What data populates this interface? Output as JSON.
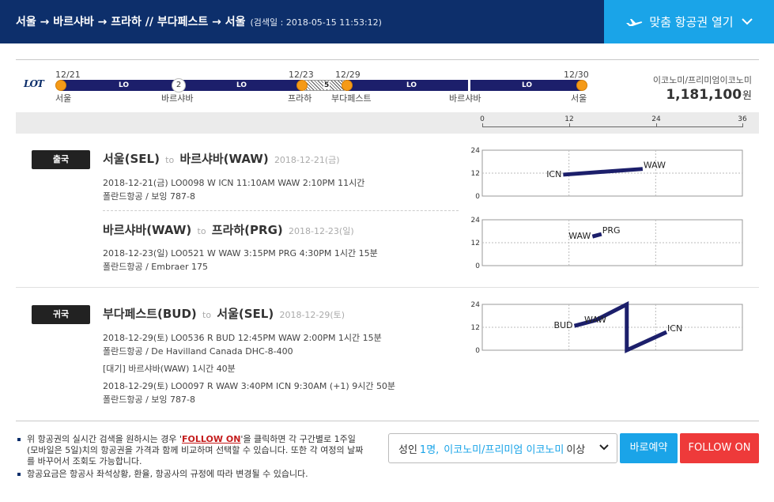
{
  "header": {
    "route": "서울 → 바르샤바 → 프라하 // 부다페스트 → 서울",
    "search_date": "(검색일 : 2018-05-15 11:53:12)",
    "custom_ticket_label": "맞춤 항공권 열기"
  },
  "timeline": {
    "airline_logo": "LOT",
    "segments": [
      "LO",
      "LO",
      "LO",
      "LO"
    ],
    "stop_count": "2",
    "hatch_count": "5",
    "dates": [
      "12/21",
      "12/23",
      "12/29",
      "12/30"
    ],
    "cities": [
      "서울",
      "바르샤바",
      "프라하",
      "부다페스트",
      "바르샤바",
      "서울"
    ],
    "fare_class": "이코노미/프리미엄이코노미",
    "price": "1,181,100",
    "currency": "원",
    "hour_scale": [
      "0",
      "12",
      "24",
      "36"
    ]
  },
  "legs": {
    "outbound": {
      "badge": "출국",
      "flights": [
        {
          "from": "서울(SEL)",
          "to_word": "to",
          "to": "바르샤바(WAW)",
          "date": "2018-12-21(금)",
          "detail": "2018-12-21(금)   LO0098   W   ICN 11:10AM WAW 2:10PM   11시간",
          "aircraft": "폴란드항공 / 보잉 787-8"
        },
        {
          "from": "바르샤바(WAW)",
          "to_word": "to",
          "to": "프라하(PRG)",
          "date": "2018-12-23(일)",
          "detail": "2018-12-23(일)   LO0521   W   WAW 3:15PM PRG 4:30PM   1시간 15분",
          "aircraft": "폴란드항공 / Embraer 175"
        }
      ]
    },
    "return": {
      "badge": "귀국",
      "flight": {
        "from": "부다페스트(BUD)",
        "to_word": "to",
        "to": "서울(SEL)",
        "date": "2018-12-29(토)",
        "detail1": "2018-12-29(토)   LO0536   R   BUD 12:45PM WAW 2:00PM   1시간 15분",
        "aircraft1": "폴란드항공 / De Havilland Canada DHC-8-400",
        "layover": "[대기] 바르샤바(WAW)   1시간 40분",
        "detail2": "2018-12-29(토)   LO0097   R   WAW 3:40PM ICN 9:30AM (+1)   9시간 50분",
        "aircraft2": "폴란드항공 / 보잉 787-8"
      }
    }
  },
  "chart_data": [
    {
      "type": "line",
      "title": "",
      "xlabel": "",
      "ylabel": "",
      "xlim": [
        0,
        36
      ],
      "ylim": [
        0,
        24
      ],
      "yticks": [
        "24",
        "12",
        "0"
      ],
      "series": [
        {
          "points": [
            {
              "x": 11.2,
              "y": 11.2
            },
            {
              "x": 22.2,
              "y": 14.2
            }
          ]
        }
      ],
      "point_labels": [
        "ICN",
        "WAW"
      ],
      "grid": true
    },
    {
      "type": "line",
      "title": "",
      "xlabel": "",
      "ylabel": "",
      "xlim": [
        0,
        36
      ],
      "ylim": [
        0,
        24
      ],
      "yticks": [
        "24",
        "12",
        "0"
      ],
      "series": [
        {
          "points": [
            {
              "x": 15.25,
              "y": 15.25
            },
            {
              "x": 16.5,
              "y": 16.5
            }
          ]
        }
      ],
      "point_labels": [
        "WAW",
        "PRG"
      ],
      "grid": true
    },
    {
      "type": "line",
      "title": "",
      "xlabel": "",
      "ylabel": "",
      "xlim": [
        0,
        36
      ],
      "ylim": [
        0,
        24
      ],
      "yticks": [
        "24",
        "12",
        "0"
      ],
      "series": [
        {
          "points": [
            {
              "x": 12.75,
              "y": 12.75
            },
            {
              "x": 14.0,
              "y": 14.0
            },
            {
              "x": 15.67,
              "y": 15.67
            },
            {
              "x": 20.0,
              "y": 24
            },
            {
              "x": 20.0,
              "y": 0
            },
            {
              "x": 25.5,
              "y": 9.5
            }
          ]
        }
      ],
      "point_labels": [
        "BUD",
        "WAW",
        "",
        "",
        "",
        "ICN"
      ],
      "grid": true
    }
  ],
  "footer": {
    "note1_pre": "위 항공권의 실시간 검색을 원하시는 경우 '",
    "note1_link": "FOLLOW ON",
    "note1_post": "'을 클릭하면 각 구간별로 1주일(모바일은 5일)치의 항공권을 가격과 함께 비교하며 선택할 수 있습니다. 또한 각 여정의 날짜를 바꾸어서 조회도 가능합니다.",
    "note2": "항공요금은 항공사 좌석상황, 환율, 항공사의 규정에 따라 변경될 수 있습니다.",
    "pax_prefix": "성인",
    "pax_count": "1명,",
    "pax_class": "이코노미/프리미엄 이코노미",
    "pax_suffix": "이상",
    "book_label": "바로예약",
    "follow_label": "FOLLOW ON"
  },
  "colors": {
    "header_bg": "#0d2f6b",
    "accent_blue": "#1aa4e8",
    "follow_red": "#ee3a3a",
    "segment_navy": "#1c1f6b",
    "stop_orange": "#f59a17"
  }
}
